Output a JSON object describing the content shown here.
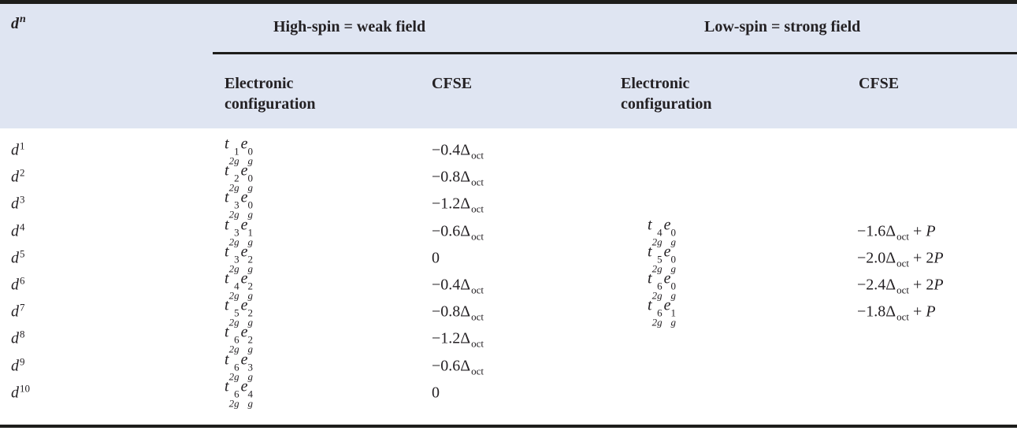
{
  "table": {
    "col1_header": {
      "base": "d",
      "sup": "n"
    },
    "groups": [
      {
        "label": "High-spin = weak field"
      },
      {
        "label": "Low-spin = strong field"
      }
    ],
    "col_headers": {
      "config_line1": "Electronic",
      "config_line2": "configuration",
      "cfse": "CFSE"
    },
    "notation": {
      "t": "t",
      "t_sub": "2g",
      "e": "e",
      "e_sub": "g",
      "delta": "Δ",
      "delta_sub": "oct",
      "plus": "+",
      "pairing": "P"
    }
  },
  "rows": [
    {
      "dn": "1",
      "hs": {
        "t": "1",
        "e": "0"
      },
      "hs_cfse": {
        "num": "−0.4",
        "delta": true,
        "p": false,
        "p_coef": ""
      },
      "ls": null,
      "ls_cfse": null
    },
    {
      "dn": "2",
      "hs": {
        "t": "2",
        "e": "0"
      },
      "hs_cfse": {
        "num": "−0.8",
        "delta": true,
        "p": false,
        "p_coef": ""
      },
      "ls": null,
      "ls_cfse": null
    },
    {
      "dn": "3",
      "hs": {
        "t": "3",
        "e": "0"
      },
      "hs_cfse": {
        "num": "−1.2",
        "delta": true,
        "p": false,
        "p_coef": ""
      },
      "ls": null,
      "ls_cfse": null
    },
    {
      "dn": "4",
      "hs": {
        "t": "3",
        "e": "1"
      },
      "hs_cfse": {
        "num": "−0.6",
        "delta": true,
        "p": false,
        "p_coef": ""
      },
      "ls": {
        "t": "4",
        "e": "0"
      },
      "ls_cfse": {
        "num": "−1.6",
        "delta": true,
        "p": true,
        "p_coef": ""
      }
    },
    {
      "dn": "5",
      "hs": {
        "t": "3",
        "e": "2"
      },
      "hs_cfse": {
        "num": "0",
        "delta": false,
        "p": false,
        "p_coef": ""
      },
      "ls": {
        "t": "5",
        "e": "0"
      },
      "ls_cfse": {
        "num": "−2.0",
        "delta": true,
        "p": true,
        "p_coef": "2"
      }
    },
    {
      "dn": "6",
      "hs": {
        "t": "4",
        "e": "2"
      },
      "hs_cfse": {
        "num": "−0.4",
        "delta": true,
        "p": false,
        "p_coef": ""
      },
      "ls": {
        "t": "6",
        "e": "0"
      },
      "ls_cfse": {
        "num": "−2.4",
        "delta": true,
        "p": true,
        "p_coef": "2"
      }
    },
    {
      "dn": "7",
      "hs": {
        "t": "5",
        "e": "2"
      },
      "hs_cfse": {
        "num": "−0.8",
        "delta": true,
        "p": false,
        "p_coef": ""
      },
      "ls": {
        "t": "6",
        "e": "1"
      },
      "ls_cfse": {
        "num": "−1.8",
        "delta": true,
        "p": true,
        "p_coef": ""
      }
    },
    {
      "dn": "8",
      "hs": {
        "t": "6",
        "e": "2"
      },
      "hs_cfse": {
        "num": "−1.2",
        "delta": true,
        "p": false,
        "p_coef": ""
      },
      "ls": null,
      "ls_cfse": null
    },
    {
      "dn": "9",
      "hs": {
        "t": "6",
        "e": "3"
      },
      "hs_cfse": {
        "num": "−0.6",
        "delta": true,
        "p": false,
        "p_coef": ""
      },
      "ls": null,
      "ls_cfse": null
    },
    {
      "dn": "10",
      "hs": {
        "t": "6",
        "e": "4"
      },
      "hs_cfse": {
        "num": "0",
        "delta": false,
        "p": false,
        "p_coef": ""
      },
      "ls": null,
      "ls_cfse": null
    }
  ],
  "colors": {
    "band": "#dfe5f2",
    "rule": "#1d1d1b",
    "text": "#242124"
  }
}
